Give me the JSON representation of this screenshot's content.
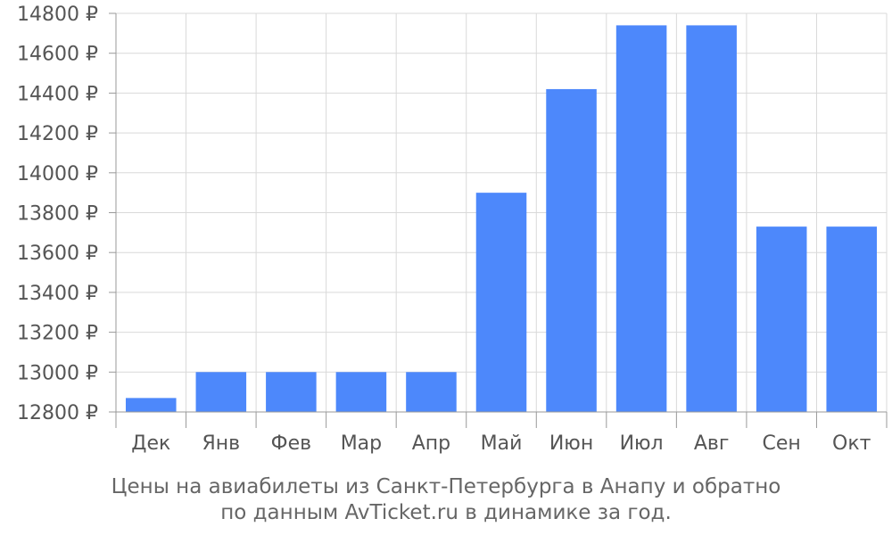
{
  "chart_data": {
    "type": "bar",
    "categories": [
      "Дек",
      "Янв",
      "Фев",
      "Мар",
      "Апр",
      "Май",
      "Июн",
      "Июл",
      "Авг",
      "Сен",
      "Окт"
    ],
    "values": [
      12870,
      13000,
      13000,
      13000,
      13000,
      13900,
      14420,
      14740,
      14740,
      13730,
      13730
    ],
    "ylim": [
      12800,
      14800
    ],
    "yticks": [
      "12800 ₽",
      "13000 ₽",
      "13200 ₽",
      "13400 ₽",
      "13600 ₽",
      "13800 ₽",
      "14000 ₽",
      "14200 ₽",
      "14400 ₽",
      "14600 ₽",
      "14800 ₽"
    ],
    "ytick_values": [
      12800,
      13000,
      13200,
      13400,
      13600,
      13800,
      14000,
      14200,
      14400,
      14600,
      14800
    ],
    "caption_line1": "Цены на авиабилеты из Санкт-Петербурга в Анапу и обратно",
    "caption_line2": "по данным AvTicket.ru в динамике за год.",
    "grid": true,
    "colors": {
      "bar": "#4d88fb",
      "grid": "#d9d9d9",
      "axis": "#999999"
    }
  }
}
